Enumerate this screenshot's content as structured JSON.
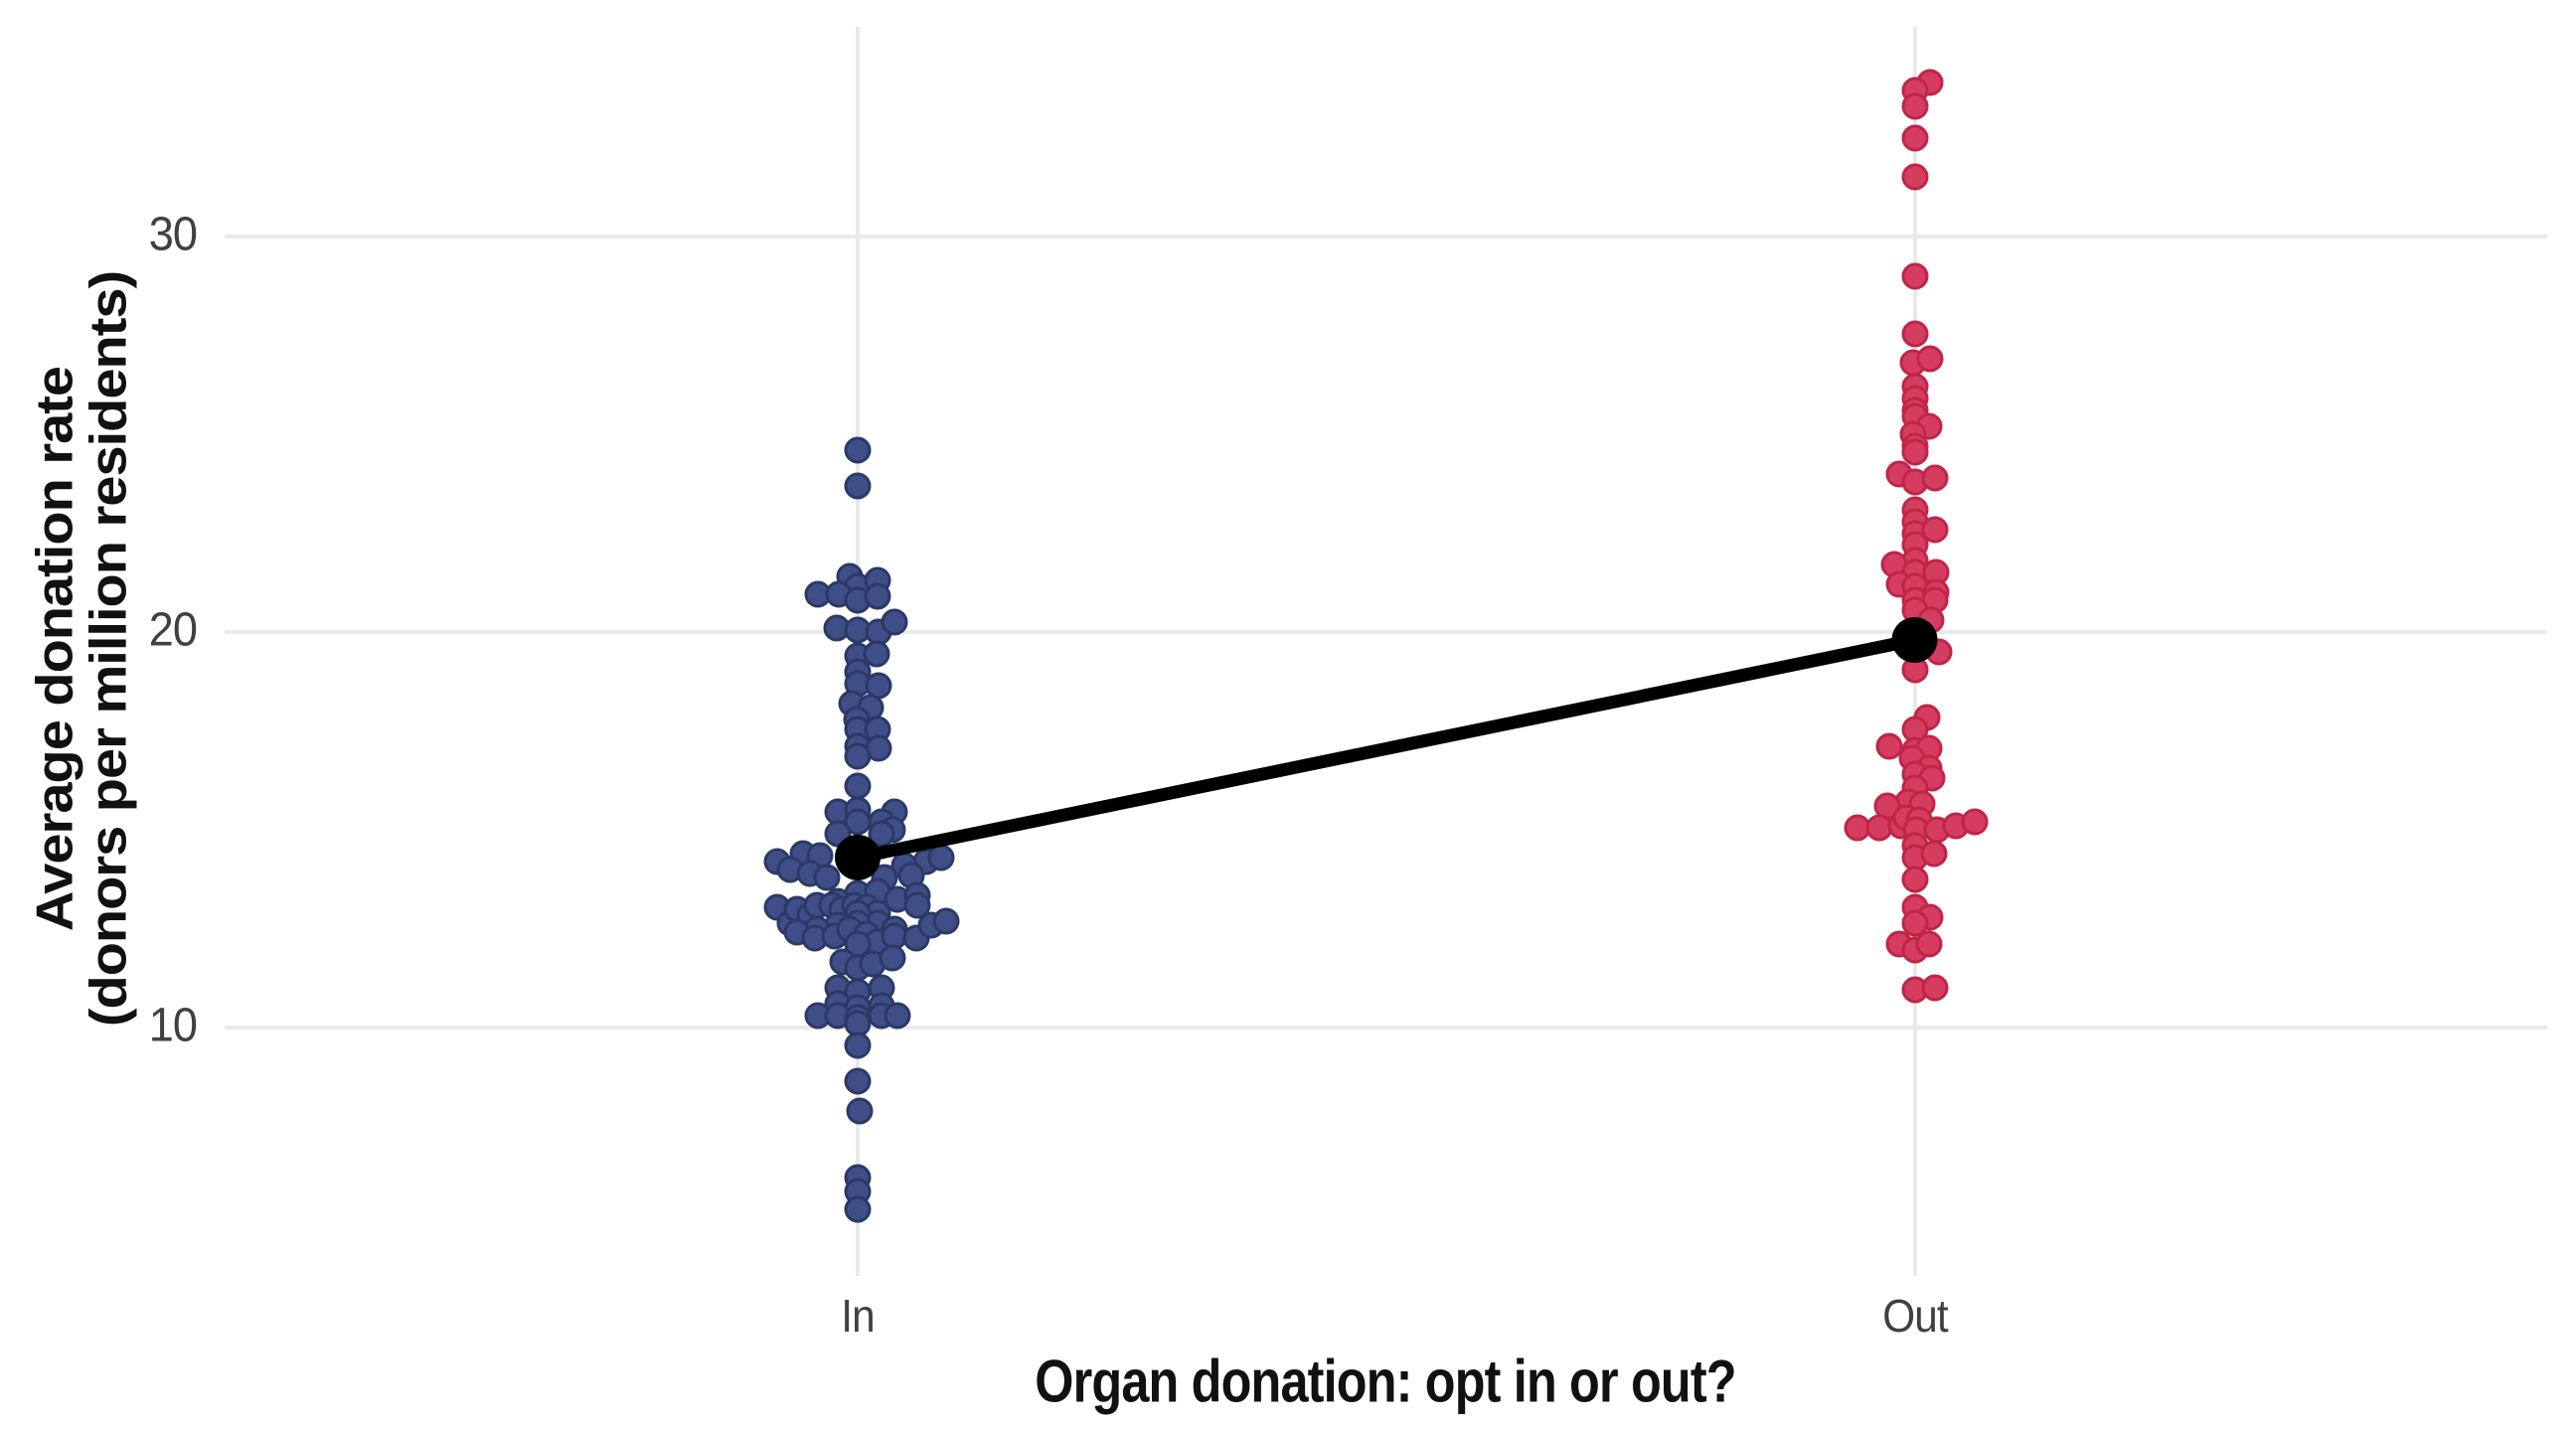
{
  "chart_data": {
    "type": "scatter",
    "variant": "beeswarm strip plot with group means connected by a trend line",
    "xlabel": "Organ donation: opt in or out?",
    "ylabel_line1": "Average donation rate",
    "ylabel_line2": "(donors per million residents)",
    "categories": [
      "In",
      "Out"
    ],
    "y_ticks": [
      30,
      20,
      10
    ],
    "ylim": [
      3.7,
      35.3
    ],
    "grid": "major gridlines only, light gray on white",
    "legend": "none",
    "point_offset_units": "pixel offset from category center (beeswarm jitter), value = donors per million residents",
    "series": [
      {
        "name": "In",
        "fill": "#3f4e87",
        "stroke": "#2b3966",
        "points": [
          [
            0,
            24.6
          ],
          [
            0,
            23.7
          ],
          [
            -8,
            21.4
          ],
          [
            0,
            21.15
          ],
          [
            20,
            21.3
          ],
          [
            -40,
            20.95
          ],
          [
            -19,
            20.95
          ],
          [
            0,
            20.8
          ],
          [
            20,
            20.9
          ],
          [
            -21,
            20.1
          ],
          [
            0,
            20.05
          ],
          [
            21,
            20.0
          ],
          [
            37,
            20.25
          ],
          [
            0,
            19.4
          ],
          [
            19,
            19.45
          ],
          [
            0,
            19.0
          ],
          [
            0,
            18.7
          ],
          [
            21,
            18.65
          ],
          [
            -6,
            18.2
          ],
          [
            13,
            18.1
          ],
          [
            -1,
            17.8
          ],
          [
            0,
            17.55
          ],
          [
            20,
            17.55
          ],
          [
            0,
            17.1
          ],
          [
            21,
            17.05
          ],
          [
            0,
            16.85
          ],
          [
            0,
            16.1
          ],
          [
            -20,
            15.45
          ],
          [
            37,
            15.45
          ],
          [
            0,
            15.5
          ],
          [
            0,
            15.2
          ],
          [
            24,
            15.2
          ],
          [
            -20,
            14.9
          ],
          [
            35,
            15.0
          ],
          [
            24,
            14.9
          ],
          [
            -55,
            14.4
          ],
          [
            -81,
            14.2
          ],
          [
            -38,
            14.35
          ],
          [
            -68,
            14.0
          ],
          [
            -48,
            13.9
          ],
          [
            -31,
            13.8
          ],
          [
            69,
            14.2
          ],
          [
            84,
            14.3
          ],
          [
            47,
            14.1
          ],
          [
            54,
            13.85
          ],
          [
            27,
            13.8
          ],
          [
            0,
            13.4
          ],
          [
            20,
            13.45
          ],
          [
            -20,
            13.2
          ],
          [
            40,
            13.25
          ],
          [
            60,
            13.35
          ],
          [
            60,
            13.1
          ],
          [
            -81,
            13.05
          ],
          [
            -68,
            12.65
          ],
          [
            -61,
            13.0
          ],
          [
            -48,
            12.85
          ],
          [
            -41,
            13.1
          ],
          [
            -26,
            13.1
          ],
          [
            -16,
            13.0
          ],
          [
            -3,
            13.1
          ],
          [
            9,
            13.05
          ],
          [
            20,
            12.9
          ],
          [
            20,
            12.65
          ],
          [
            37,
            12.5
          ],
          [
            0,
            12.9
          ],
          [
            0,
            12.65
          ],
          [
            -20,
            12.6
          ],
          [
            -41,
            12.5
          ],
          [
            -61,
            12.4
          ],
          [
            -43,
            12.25
          ],
          [
            -23,
            12.3
          ],
          [
            -8,
            12.5
          ],
          [
            9,
            12.35
          ],
          [
            20,
            12.15
          ],
          [
            37,
            12.3
          ],
          [
            59,
            12.25
          ],
          [
            74,
            12.6
          ],
          [
            89,
            12.7
          ],
          [
            0,
            12.1
          ],
          [
            -15,
            11.65
          ],
          [
            0,
            11.5
          ],
          [
            15,
            11.6
          ],
          [
            35,
            11.75
          ],
          [
            -20,
            11.0
          ],
          [
            0,
            10.9
          ],
          [
            24,
            11.0
          ],
          [
            -20,
            10.6
          ],
          [
            0,
            10.5
          ],
          [
            24,
            10.55
          ],
          [
            -40,
            10.3
          ],
          [
            -20,
            10.3
          ],
          [
            0,
            10.25
          ],
          [
            24,
            10.3
          ],
          [
            40,
            10.3
          ],
          [
            0,
            10.1
          ],
          [
            0,
            9.55
          ],
          [
            0,
            8.65
          ],
          [
            2,
            7.9
          ],
          [
            0,
            6.2
          ],
          [
            0,
            5.85
          ],
          [
            0,
            5.4
          ]
        ]
      },
      {
        "name": "Out",
        "fill": "#d43d5f",
        "stroke": "#c02447",
        "points": [
          [
            15,
            33.9
          ],
          [
            0,
            33.7
          ],
          [
            0,
            33.3
          ],
          [
            0,
            32.5
          ],
          [
            0,
            31.5
          ],
          [
            0,
            29.0
          ],
          [
            0,
            27.55
          ],
          [
            -2,
            26.8
          ],
          [
            15,
            26.9
          ],
          [
            0,
            26.2
          ],
          [
            0,
            25.9
          ],
          [
            0,
            25.6
          ],
          [
            0,
            25.45
          ],
          [
            14,
            25.2
          ],
          [
            -2,
            25.0
          ],
          [
            0,
            24.7
          ],
          [
            0,
            24.55
          ],
          [
            -16,
            24.0
          ],
          [
            0,
            23.8
          ],
          [
            20,
            23.9
          ],
          [
            0,
            23.1
          ],
          [
            0,
            22.8
          ],
          [
            0,
            22.5
          ],
          [
            20,
            22.6
          ],
          [
            0,
            22.2
          ],
          [
            0,
            21.8
          ],
          [
            -21,
            21.7
          ],
          [
            0,
            21.5
          ],
          [
            21,
            21.5
          ],
          [
            -16,
            21.2
          ],
          [
            0,
            21.15
          ],
          [
            21,
            21.0
          ],
          [
            0,
            20.8
          ],
          [
            20,
            20.8
          ],
          [
            0,
            20.55
          ],
          [
            16,
            20.3
          ],
          [
            24,
            19.5
          ],
          [
            0,
            19.05
          ],
          [
            12,
            17.85
          ],
          [
            0,
            17.55
          ],
          [
            -26,
            17.1
          ],
          [
            0,
            17.0
          ],
          [
            14,
            17.05
          ],
          [
            -3,
            16.8
          ],
          [
            14,
            16.55
          ],
          [
            0,
            16.4
          ],
          [
            17,
            16.3
          ],
          [
            0,
            16.05
          ],
          [
            -7,
            15.7
          ],
          [
            7,
            15.65
          ],
          [
            -28,
            15.6
          ],
          [
            -58,
            15.05
          ],
          [
            -36,
            15.05
          ],
          [
            -14,
            15.1
          ],
          [
            -9,
            15.3
          ],
          [
            4,
            15.25
          ],
          [
            1,
            15.0
          ],
          [
            22,
            15.0
          ],
          [
            41,
            15.1
          ],
          [
            60,
            15.2
          ],
          [
            0,
            14.6
          ],
          [
            0,
            14.3
          ],
          [
            19,
            14.4
          ],
          [
            0,
            13.75
          ],
          [
            0,
            13.05
          ],
          [
            15,
            12.8
          ],
          [
            0,
            12.65
          ],
          [
            -16,
            12.1
          ],
          [
            0,
            11.95
          ],
          [
            14,
            12.1
          ],
          [
            0,
            10.95
          ],
          [
            20,
            11.0
          ]
        ]
      }
    ],
    "means": [
      {
        "category": "In",
        "value": 14.3
      },
      {
        "category": "Out",
        "value": 19.8
      }
    ],
    "mean_color": "#000000",
    "trend_line": {
      "from": [
        "In",
        14.3
      ],
      "to": [
        "Out",
        19.8
      ],
      "color": "#000000"
    }
  },
  "colors": {
    "background": "#ffffff",
    "gridline": "#e9e9e9",
    "tick_text": "#404040",
    "axis_title_text": "#111111"
  }
}
